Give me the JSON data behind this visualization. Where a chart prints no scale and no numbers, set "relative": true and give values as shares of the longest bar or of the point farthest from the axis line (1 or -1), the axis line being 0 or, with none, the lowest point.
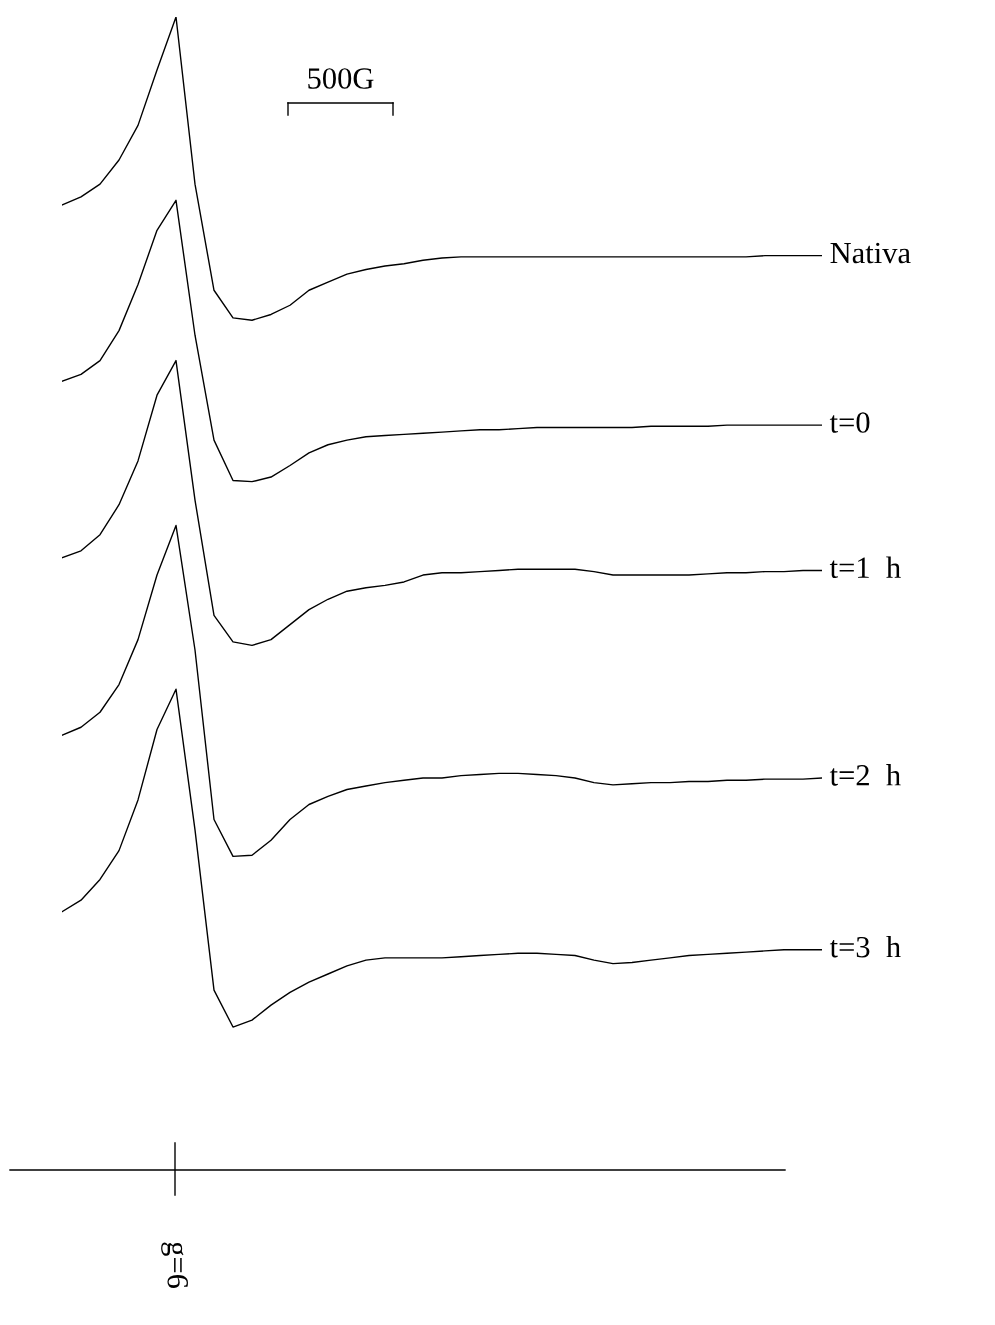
{
  "chart_data": {
    "type": "line",
    "relative": true,
    "legend": false,
    "marker": "none",
    "line_style": "solid",
    "categories": [
      null,
      null,
      null,
      null,
      null,
      null,
      null,
      null,
      null,
      null,
      null,
      null,
      null,
      null,
      null,
      null,
      null,
      null,
      null,
      null,
      null,
      null,
      null,
      null,
      null,
      null,
      null,
      null,
      null,
      null,
      null,
      null,
      null,
      null,
      null,
      null,
      null,
      null,
      null,
      null,
      null
    ],
    "series": [
      {
        "name": "Nativa",
        "color": "#000000",
        "values": [
          0.837,
          0.844,
          0.855,
          0.876,
          0.906,
          0.954,
          1,
          0.855,
          0.763,
          0.739,
          0.737,
          0.742,
          0.75,
          0.763,
          0.77,
          0.777,
          0.781,
          0.784,
          0.786,
          0.789,
          0.791,
          0.792,
          0.792,
          0.792,
          0.792,
          0.792,
          0.792,
          0.792,
          0.792,
          0.792,
          0.792,
          0.792,
          0.792,
          0.792,
          0.792,
          0.792,
          0.792,
          0.793,
          0.793,
          0.793,
          0.793
        ]
      },
      {
        "name": "t=0",
        "color": "#000000",
        "values": [
          0.684,
          0.69,
          0.702,
          0.728,
          0.768,
          0.815,
          0.841,
          0.724,
          0.633,
          0.598,
          0.597,
          0.601,
          0.611,
          0.622,
          0.629,
          0.633,
          0.636,
          0.637,
          0.638,
          0.639,
          0.64,
          0.641,
          0.642,
          0.642,
          0.643,
          0.644,
          0.644,
          0.644,
          0.644,
          0.644,
          0.644,
          0.645,
          0.645,
          0.645,
          0.645,
          0.646,
          0.646,
          0.646,
          0.646,
          0.646,
          0.646
        ]
      },
      {
        "name": "t=1  h",
        "color": "#000000",
        "values": [
          0.531,
          0.537,
          0.551,
          0.577,
          0.615,
          0.672,
          0.702,
          0.581,
          0.481,
          0.458,
          0.455,
          0.46,
          0.473,
          0.486,
          0.495,
          0.502,
          0.505,
          0.507,
          0.51,
          0.516,
          0.518,
          0.518,
          0.519,
          0.52,
          0.521,
          0.521,
          0.521,
          0.521,
          0.519,
          0.516,
          0.516,
          0.516,
          0.516,
          0.516,
          0.517,
          0.518,
          0.518,
          0.519,
          0.519,
          0.52,
          0.52
        ]
      },
      {
        "name": "t=2  h",
        "color": "#000000",
        "values": [
          0.377,
          0.384,
          0.397,
          0.421,
          0.46,
          0.516,
          0.559,
          0.451,
          0.304,
          0.272,
          0.273,
          0.286,
          0.304,
          0.317,
          0.324,
          0.33,
          0.333,
          0.336,
          0.338,
          0.34,
          0.34,
          0.342,
          0.343,
          0.344,
          0.344,
          0.343,
          0.342,
          0.34,
          0.336,
          0.334,
          0.335,
          0.336,
          0.336,
          0.337,
          0.337,
          0.338,
          0.338,
          0.339,
          0.339,
          0.339,
          0.34
        ]
      },
      {
        "name": "t=3  h",
        "color": "#000000",
        "values": [
          0.224,
          0.234,
          0.252,
          0.277,
          0.321,
          0.382,
          0.417,
          0.295,
          0.156,
          0.124,
          0.13,
          0.143,
          0.154,
          0.163,
          0.17,
          0.177,
          0.182,
          0.184,
          0.184,
          0.184,
          0.184,
          0.185,
          0.186,
          0.187,
          0.188,
          0.188,
          0.187,
          0.186,
          0.182,
          0.179,
          0.18,
          0.182,
          0.184,
          0.186,
          0.187,
          0.188,
          0.189,
          0.19,
          0.191,
          0.191,
          0.191
        ]
      }
    ],
    "annotations": [
      "500G",
      "g=6"
    ]
  }
}
